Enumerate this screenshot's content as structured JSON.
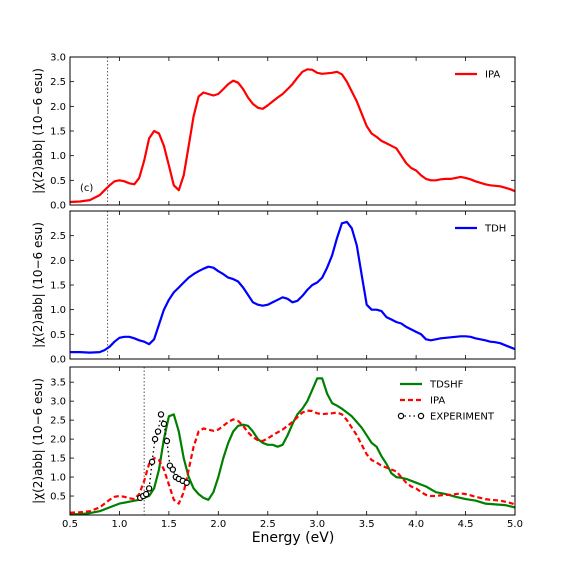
{
  "chart_data": [
    {
      "type": "line",
      "panel_label": "(c)",
      "ylabel": "|χ(2)abb| (10−6 esu)",
      "xlim": [
        0.5,
        5.0
      ],
      "ylim": [
        0.0,
        3.0
      ],
      "yticks": [
        "0.0",
        "0.5",
        "1.0",
        "1.5",
        "2.0",
        "2.5",
        "3.0"
      ],
      "vline_x": 0.88,
      "legend_position": "top-right",
      "series": [
        {
          "name": "IPA",
          "color": "#ff0000",
          "style": "solid",
          "x": [
            0.5,
            0.6,
            0.7,
            0.8,
            0.85,
            0.9,
            0.95,
            1.0,
            1.05,
            1.1,
            1.15,
            1.2,
            1.25,
            1.3,
            1.35,
            1.4,
            1.45,
            1.5,
            1.55,
            1.6,
            1.65,
            1.7,
            1.75,
            1.8,
            1.85,
            1.9,
            1.95,
            2.0,
            2.05,
            2.1,
            2.15,
            2.2,
            2.25,
            2.3,
            2.35,
            2.4,
            2.45,
            2.5,
            2.55,
            2.6,
            2.65,
            2.7,
            2.75,
            2.8,
            2.85,
            2.9,
            2.95,
            3.0,
            3.05,
            3.1,
            3.15,
            3.2,
            3.25,
            3.3,
            3.35,
            3.4,
            3.45,
            3.5,
            3.55,
            3.6,
            3.65,
            3.7,
            3.75,
            3.8,
            3.85,
            3.9,
            3.95,
            4.0,
            4.05,
            4.1,
            4.15,
            4.2,
            4.25,
            4.3,
            4.35,
            4.4,
            4.45,
            4.5,
            4.55,
            4.6,
            4.65,
            4.7,
            4.75,
            4.8,
            4.85,
            4.9,
            4.95,
            5.0
          ],
          "y": [
            0.06,
            0.07,
            0.1,
            0.2,
            0.3,
            0.4,
            0.48,
            0.5,
            0.48,
            0.44,
            0.42,
            0.55,
            0.9,
            1.35,
            1.5,
            1.45,
            1.2,
            0.8,
            0.4,
            0.3,
            0.6,
            1.2,
            1.8,
            2.2,
            2.28,
            2.25,
            2.22,
            2.25,
            2.35,
            2.45,
            2.52,
            2.48,
            2.35,
            2.18,
            2.05,
            1.97,
            1.95,
            2.02,
            2.1,
            2.18,
            2.25,
            2.35,
            2.45,
            2.58,
            2.7,
            2.75,
            2.74,
            2.68,
            2.66,
            2.67,
            2.68,
            2.7,
            2.65,
            2.5,
            2.3,
            2.1,
            1.85,
            1.6,
            1.45,
            1.38,
            1.3,
            1.25,
            1.2,
            1.15,
            1.0,
            0.85,
            0.75,
            0.7,
            0.6,
            0.53,
            0.5,
            0.5,
            0.52,
            0.53,
            0.53,
            0.55,
            0.57,
            0.55,
            0.52,
            0.48,
            0.45,
            0.42,
            0.4,
            0.39,
            0.38,
            0.35,
            0.32,
            0.28
          ]
        }
      ]
    },
    {
      "type": "line",
      "ylabel": "|χ(2)abb| (10−6 esu)",
      "xlim": [
        0.5,
        5.0
      ],
      "ylim": [
        0.0,
        3.0
      ],
      "yticks": [
        "0.0",
        "0.5",
        "1.0",
        "1.5",
        "2.0",
        "2.5"
      ],
      "vline_x": 0.88,
      "legend_position": "top-right",
      "series": [
        {
          "name": "TDH",
          "color": "#0000ff",
          "style": "solid",
          "x": [
            0.5,
            0.6,
            0.7,
            0.8,
            0.85,
            0.9,
            0.95,
            1.0,
            1.05,
            1.1,
            1.15,
            1.2,
            1.25,
            1.3,
            1.35,
            1.4,
            1.45,
            1.5,
            1.55,
            1.6,
            1.65,
            1.7,
            1.75,
            1.8,
            1.85,
            1.9,
            1.95,
            2.0,
            2.05,
            2.1,
            2.15,
            2.2,
            2.25,
            2.3,
            2.35,
            2.4,
            2.45,
            2.5,
            2.55,
            2.6,
            2.65,
            2.7,
            2.75,
            2.8,
            2.85,
            2.9,
            2.95,
            3.0,
            3.05,
            3.1,
            3.15,
            3.2,
            3.25,
            3.3,
            3.35,
            3.4,
            3.45,
            3.5,
            3.55,
            3.6,
            3.65,
            3.7,
            3.75,
            3.8,
            3.85,
            3.9,
            3.95,
            4.0,
            4.05,
            4.1,
            4.15,
            4.2,
            4.25,
            4.3,
            4.35,
            4.4,
            4.45,
            4.5,
            4.55,
            4.6,
            4.65,
            4.7,
            4.75,
            4.8,
            4.85,
            4.9,
            4.95,
            5.0
          ],
          "y": [
            0.14,
            0.14,
            0.13,
            0.14,
            0.18,
            0.25,
            0.35,
            0.43,
            0.45,
            0.45,
            0.42,
            0.38,
            0.35,
            0.3,
            0.4,
            0.7,
            1.0,
            1.2,
            1.35,
            1.45,
            1.55,
            1.65,
            1.72,
            1.78,
            1.83,
            1.87,
            1.85,
            1.78,
            1.72,
            1.65,
            1.62,
            1.57,
            1.45,
            1.3,
            1.15,
            1.1,
            1.08,
            1.1,
            1.15,
            1.2,
            1.25,
            1.22,
            1.15,
            1.18,
            1.28,
            1.4,
            1.5,
            1.55,
            1.65,
            1.85,
            2.1,
            2.45,
            2.75,
            2.78,
            2.65,
            2.3,
            1.7,
            1.1,
            1.0,
            1.0,
            0.97,
            0.85,
            0.8,
            0.75,
            0.72,
            0.65,
            0.6,
            0.55,
            0.5,
            0.4,
            0.38,
            0.4,
            0.42,
            0.43,
            0.44,
            0.45,
            0.46,
            0.46,
            0.45,
            0.42,
            0.4,
            0.38,
            0.35,
            0.34,
            0.32,
            0.28,
            0.24,
            0.2
          ]
        }
      ]
    },
    {
      "type": "line",
      "ylabel": "|χ(2)abb| (10−6 esu)",
      "xlabel": "Energy (eV)",
      "xlim": [
        0.5,
        5.0
      ],
      "ylim": [
        0.0,
        3.9
      ],
      "yticks": [
        "0.5",
        "1.0",
        "1.5",
        "2.0",
        "2.5",
        "3.0",
        "3.5"
      ],
      "xticks": [
        "0.5",
        "1.0",
        "1.5",
        "2.0",
        "2.5",
        "3.0",
        "3.5",
        "4.0",
        "4.5",
        "5.0"
      ],
      "vline_x": 1.25,
      "legend_position": "top-right",
      "series": [
        {
          "name": "TDSHF",
          "color": "#008000",
          "style": "solid",
          "x": [
            0.5,
            0.6,
            0.7,
            0.8,
            0.9,
            1.0,
            1.1,
            1.2,
            1.25,
            1.3,
            1.35,
            1.4,
            1.45,
            1.5,
            1.55,
            1.6,
            1.65,
            1.7,
            1.75,
            1.8,
            1.85,
            1.9,
            1.95,
            2.0,
            2.05,
            2.1,
            2.15,
            2.2,
            2.25,
            2.3,
            2.35,
            2.4,
            2.45,
            2.5,
            2.55,
            2.6,
            2.65,
            2.7,
            2.75,
            2.8,
            2.85,
            2.9,
            2.95,
            3.0,
            3.05,
            3.1,
            3.15,
            3.2,
            3.25,
            3.3,
            3.35,
            3.4,
            3.45,
            3.5,
            3.55,
            3.6,
            3.65,
            3.7,
            3.75,
            3.8,
            3.85,
            3.9,
            3.95,
            4.0,
            4.05,
            4.1,
            4.2,
            4.3,
            4.4,
            4.5,
            4.6,
            4.7,
            4.8,
            4.9,
            5.0
          ],
          "y": [
            0.02,
            0.02,
            0.05,
            0.1,
            0.2,
            0.3,
            0.35,
            0.4,
            0.45,
            0.5,
            0.7,
            1.2,
            2.0,
            2.6,
            2.65,
            2.2,
            1.5,
            1.0,
            0.7,
            0.55,
            0.45,
            0.4,
            0.6,
            1.0,
            1.5,
            1.9,
            2.2,
            2.35,
            2.38,
            2.35,
            2.2,
            2.0,
            1.9,
            1.85,
            1.85,
            1.8,
            1.85,
            2.1,
            2.4,
            2.65,
            2.8,
            3.0,
            3.3,
            3.6,
            3.6,
            3.2,
            2.95,
            2.88,
            2.8,
            2.7,
            2.6,
            2.45,
            2.3,
            2.1,
            1.9,
            1.8,
            1.55,
            1.35,
            1.1,
            1.0,
            0.98,
            0.95,
            0.9,
            0.85,
            0.8,
            0.75,
            0.6,
            0.55,
            0.48,
            0.42,
            0.38,
            0.3,
            0.28,
            0.26,
            0.2
          ]
        },
        {
          "name": "IPA",
          "color": "#ff0000",
          "style": "dashed",
          "x": [
            0.5,
            0.6,
            0.7,
            0.8,
            0.85,
            0.9,
            0.95,
            1.0,
            1.05,
            1.1,
            1.15,
            1.2,
            1.25,
            1.3,
            1.35,
            1.4,
            1.45,
            1.5,
            1.55,
            1.6,
            1.65,
            1.7,
            1.75,
            1.8,
            1.85,
            1.9,
            1.95,
            2.0,
            2.05,
            2.1,
            2.15,
            2.2,
            2.25,
            2.3,
            2.35,
            2.4,
            2.45,
            2.5,
            2.55,
            2.6,
            2.65,
            2.7,
            2.75,
            2.8,
            2.85,
            2.9,
            2.95,
            3.0,
            3.05,
            3.1,
            3.15,
            3.2,
            3.25,
            3.3,
            3.35,
            3.4,
            3.45,
            3.5,
            3.55,
            3.6,
            3.65,
            3.7,
            3.75,
            3.8,
            3.85,
            3.9,
            3.95,
            4.0,
            4.05,
            4.1,
            4.15,
            4.2,
            4.25,
            4.3,
            4.35,
            4.4,
            4.45,
            4.5,
            4.55,
            4.6,
            4.65,
            4.7,
            4.75,
            4.8,
            4.85,
            4.9,
            4.95,
            5.0
          ],
          "y": [
            0.06,
            0.07,
            0.1,
            0.2,
            0.3,
            0.4,
            0.48,
            0.5,
            0.48,
            0.44,
            0.42,
            0.55,
            0.9,
            1.35,
            1.5,
            1.45,
            1.2,
            0.8,
            0.4,
            0.3,
            0.6,
            1.2,
            1.8,
            2.2,
            2.28,
            2.25,
            2.22,
            2.25,
            2.35,
            2.45,
            2.52,
            2.48,
            2.35,
            2.18,
            2.05,
            1.97,
            1.95,
            2.02,
            2.1,
            2.18,
            2.25,
            2.35,
            2.45,
            2.58,
            2.7,
            2.75,
            2.74,
            2.68,
            2.66,
            2.67,
            2.68,
            2.7,
            2.65,
            2.5,
            2.3,
            2.1,
            1.85,
            1.6,
            1.45,
            1.38,
            1.3,
            1.25,
            1.2,
            1.15,
            1.0,
            0.85,
            0.75,
            0.7,
            0.6,
            0.53,
            0.5,
            0.5,
            0.52,
            0.53,
            0.53,
            0.55,
            0.57,
            0.55,
            0.52,
            0.48,
            0.45,
            0.42,
            0.4,
            0.39,
            0.38,
            0.35,
            0.32,
            0.28
          ]
        },
        {
          "name": "EXPERIMENT",
          "color": "#000000",
          "style": "dotted-markers",
          "x": [
            1.21,
            1.24,
            1.27,
            1.3,
            1.33,
            1.36,
            1.39,
            1.42,
            1.45,
            1.48,
            1.51,
            1.54,
            1.57,
            1.6,
            1.64,
            1.68
          ],
          "y": [
            0.45,
            0.5,
            0.55,
            0.7,
            1.4,
            2.0,
            2.2,
            2.65,
            2.4,
            1.95,
            1.3,
            1.2,
            1.0,
            0.95,
            0.9,
            0.85
          ]
        }
      ]
    }
  ]
}
